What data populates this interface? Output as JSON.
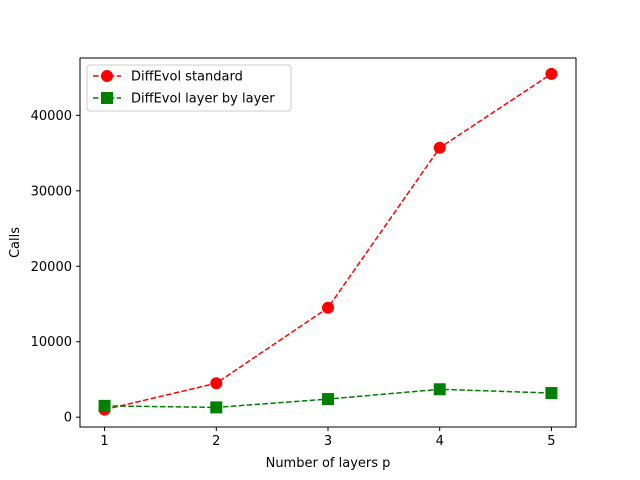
{
  "chart_data": {
    "type": "line",
    "title": "",
    "xlabel": "Number of layers p",
    "ylabel": "Calls",
    "x": [
      1,
      2,
      3,
      4,
      5
    ],
    "xticks": [
      "1",
      "2",
      "3",
      "4",
      "5"
    ],
    "yticks": [
      "0",
      "10000",
      "20000",
      "30000",
      "40000"
    ],
    "xlim": [
      0.78,
      5.22
    ],
    "ylim": [
      -1300,
      47600
    ],
    "grid": false,
    "legend_position": "upper-left",
    "series": [
      {
        "name": "DiffEvol standard",
        "values": [
          1000,
          4500,
          14500,
          35700,
          45500
        ],
        "color": "#ff0000",
        "marker": "circle",
        "linestyle": "dashed"
      },
      {
        "name": "DiffEvol layer by layer",
        "values": [
          1500,
          1300,
          2400,
          3700,
          3200
        ],
        "color": "#008000",
        "marker": "square",
        "linestyle": "dashed"
      }
    ]
  }
}
